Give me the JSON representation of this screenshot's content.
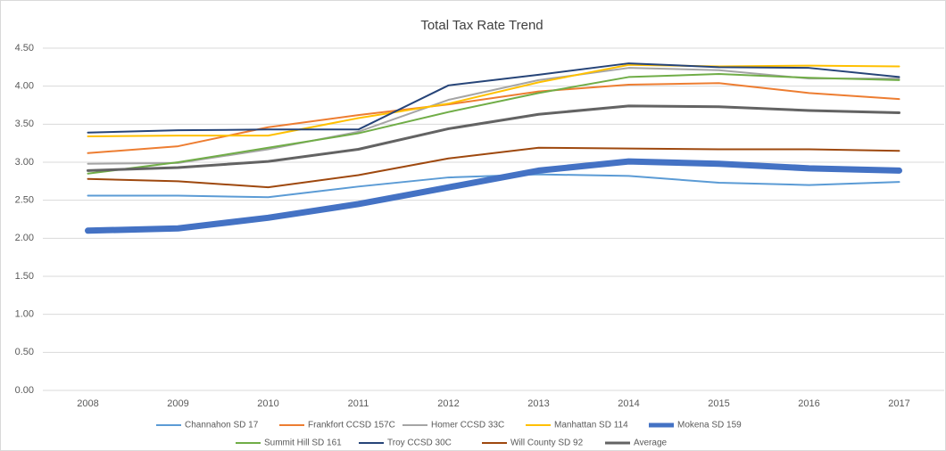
{
  "chart_data": {
    "type": "line",
    "title": "Total Tax Rate Trend",
    "categories": [
      "2008",
      "2009",
      "2010",
      "2011",
      "2012",
      "2013",
      "2014",
      "2015",
      "2016",
      "2017"
    ],
    "ylim": [
      0,
      4.5
    ],
    "yticks": [
      {
        "value": 0,
        "label": "0.00"
      },
      {
        "value": 0.5,
        "label": "0.50"
      },
      {
        "value": 1,
        "label": "1.00"
      },
      {
        "value": 1.5,
        "label": "1.50"
      },
      {
        "value": 2,
        "label": "2.00"
      },
      {
        "value": 2.5,
        "label": "2.50"
      },
      {
        "value": 3,
        "label": "3.00"
      },
      {
        "value": 3.5,
        "label": "3.50"
      },
      {
        "value": 4,
        "label": "4.00"
      },
      {
        "value": 4.5,
        "label": "4.50"
      }
    ],
    "grid": true,
    "legend": "bottom",
    "series": [
      {
        "name": "Channahon SD 17",
        "color": "#5b9bd5",
        "line_width": 2,
        "values": [
          2.56,
          2.56,
          2.54,
          2.68,
          2.8,
          2.84,
          2.82,
          2.73,
          2.7,
          2.74
        ]
      },
      {
        "name": "Frankfort CCSD 157C",
        "color": "#ed7d31",
        "line_width": 2,
        "values": [
          3.12,
          3.21,
          3.46,
          3.62,
          3.76,
          3.93,
          4.02,
          4.04,
          3.91,
          3.83
        ]
      },
      {
        "name": "Homer CCSD 33C",
        "color": "#a5a5a5",
        "line_width": 2,
        "values": [
          2.98,
          2.99,
          3.17,
          3.4,
          3.82,
          4.08,
          4.24,
          4.21,
          4.1,
          4.1
        ]
      },
      {
        "name": "Manhattan SD 114",
        "color": "#ffc000",
        "line_width": 2,
        "values": [
          3.34,
          3.35,
          3.35,
          3.58,
          3.77,
          4.05,
          4.28,
          4.26,
          4.27,
          4.26
        ]
      },
      {
        "name": "Mokena SD 159",
        "color": "#4472c4",
        "line_width": 7,
        "values": [
          2.1,
          2.13,
          2.27,
          2.45,
          2.67,
          2.89,
          3.01,
          2.98,
          2.92,
          2.89
        ]
      },
      {
        "name": "Summit Hill SD 161",
        "color": "#70ad47",
        "line_width": 2,
        "values": [
          2.85,
          3.0,
          3.19,
          3.38,
          3.66,
          3.91,
          4.12,
          4.16,
          4.11,
          4.08
        ]
      },
      {
        "name": "Troy CCSD 30C",
        "color": "#264478",
        "line_width": 2,
        "values": [
          3.39,
          3.42,
          3.43,
          3.43,
          4.01,
          4.15,
          4.3,
          4.25,
          4.24,
          4.12
        ]
      },
      {
        "name": "Will County SD 92",
        "color": "#9e480e",
        "line_width": 2,
        "values": [
          2.78,
          2.75,
          2.67,
          2.83,
          3.05,
          3.19,
          3.18,
          3.17,
          3.17,
          3.15
        ]
      },
      {
        "name": "Average",
        "color": "#636363",
        "line_width": 3,
        "values": [
          2.89,
          2.93,
          3.01,
          3.17,
          3.44,
          3.63,
          3.74,
          3.73,
          3.68,
          3.65
        ]
      }
    ]
  }
}
